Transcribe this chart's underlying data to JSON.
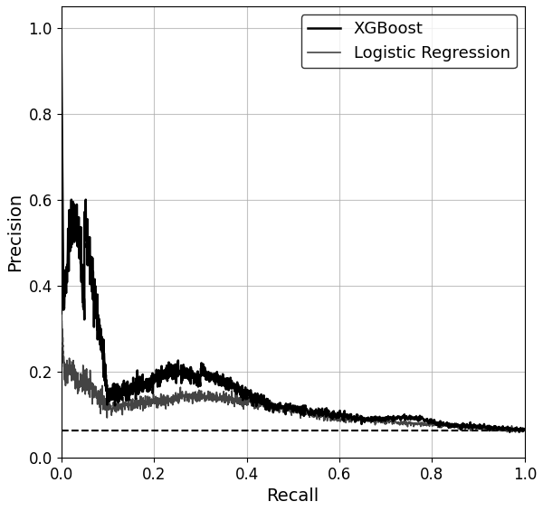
{
  "title": "",
  "xlabel": "Recall",
  "ylabel": "Precision",
  "xlim": [
    0.0,
    1.0
  ],
  "ylim": [
    0.0,
    1.05
  ],
  "baseline": 0.063,
  "xgboost_color": "#000000",
  "xgboost_linewidth": 1.8,
  "logreg_color": "#444444",
  "logreg_linewidth": 1.2,
  "baseline_color": "#000000",
  "baseline_linewidth": 1.5,
  "grid": true,
  "legend_loc": "upper right",
  "legend_fontsize": 13,
  "axis_label_fontsize": 14,
  "tick_fontsize": 12
}
